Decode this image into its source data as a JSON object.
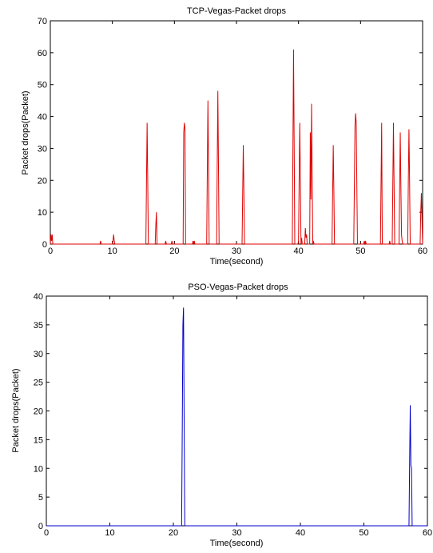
{
  "chart_data": [
    {
      "type": "line",
      "title": "TCP-Vegas-Packet drops",
      "xlabel": "Time(second)",
      "ylabel": "Packet drops(Packet)",
      "xlim": [
        0,
        60
      ],
      "ylim": [
        0,
        70
      ],
      "xticks": [
        0,
        10,
        20,
        30,
        40,
        50,
        60
      ],
      "yticks": [
        0,
        10,
        20,
        30,
        40,
        50,
        60,
        70
      ],
      "grid": false,
      "series": [
        {
          "color": "#e00000",
          "x": [
            0,
            0.1,
            0.2,
            0.3,
            0.4,
            8,
            8.1,
            8.2,
            10,
            10.1,
            10.2,
            10.3,
            10.4,
            15.4,
            15.5,
            15.6,
            15.7,
            15.8,
            16.9,
            17.0,
            17.1,
            17.2,
            18.5,
            18.6,
            18.7,
            19.5,
            19.6,
            19.7,
            21.4,
            21.5,
            21.6,
            21.7,
            21.8,
            22.9,
            23.0,
            23.1,
            23.2,
            23.3,
            25.2,
            25.3,
            25.4,
            25.5,
            25.6,
            26.8,
            26.9,
            27.0,
            27.1,
            27.2,
            30.9,
            31.0,
            31.1,
            31.2,
            31.3,
            39.0,
            39.1,
            39.2,
            39.3,
            39.4,
            39.9,
            40.0,
            40.1,
            40.2,
            40.3,
            40.4,
            40.5,
            40.6,
            41.0,
            41.1,
            41.2,
            41.3,
            41.4,
            41.8,
            41.9,
            42.0,
            42.1,
            42.2,
            42.3,
            42.4,
            42.5,
            42.6,
            45.4,
            45.5,
            45.6,
            45.7,
            45.8,
            48.9,
            49.0,
            49.1,
            49.2,
            49.3,
            49.4,
            49.5,
            50.5,
            50.6,
            50.7,
            50.8,
            50.9,
            53.2,
            53.3,
            53.4,
            53.5,
            54.6,
            54.7,
            54.8,
            55.1,
            55.2,
            55.3,
            55.4,
            55.5,
            56.2,
            56.3,
            56.4,
            56.5,
            56.6,
            56.7,
            56.8,
            57.6,
            57.7,
            57.8,
            57.9,
            58.0,
            58.1,
            59.6,
            59.7,
            59.8,
            59.9,
            60
          ],
          "y": [
            0,
            3,
            1,
            3,
            0,
            0,
            1,
            0,
            0,
            1,
            3,
            1,
            0,
            0,
            20,
            38,
            19,
            0,
            0,
            6,
            10,
            0,
            0,
            1,
            0,
            0,
            1,
            0,
            0,
            35,
            38,
            36,
            0,
            0,
            1,
            0,
            1,
            0,
            0,
            23,
            45,
            23,
            0,
            0,
            25,
            48,
            25,
            0,
            0,
            16,
            31,
            16,
            0,
            0,
            31,
            61,
            31,
            0,
            0,
            1,
            20,
            38,
            20,
            0,
            2,
            0,
            0,
            5,
            2,
            3,
            0,
            0,
            35,
            14,
            44,
            22,
            0,
            1,
            0,
            0,
            0,
            16,
            31,
            16,
            0,
            0,
            18,
            37,
            41,
            38,
            19,
            0,
            0,
            1,
            0,
            1,
            0,
            0,
            19,
            38,
            0,
            0,
            1,
            0,
            0,
            19,
            38,
            19,
            0,
            0,
            18,
            35,
            18,
            3,
            1,
            0,
            0,
            20,
            36,
            20,
            0,
            0,
            0,
            10,
            16,
            8,
            0
          ]
        }
      ]
    },
    {
      "type": "line",
      "title": "PSO-Vegas-Packet drops",
      "xlabel": "Time(second)",
      "ylabel": "Packet drops(Packet)",
      "xlim": [
        0,
        60
      ],
      "ylim": [
        0,
        40
      ],
      "xticks": [
        0,
        10,
        20,
        30,
        40,
        50,
        60
      ],
      "yticks": [
        0,
        5,
        10,
        15,
        20,
        25,
        30,
        35,
        40
      ],
      "grid": false,
      "series": [
        {
          "color": "#0000cc",
          "x": [
            0,
            21.3,
            21.4,
            21.5,
            21.6,
            21.7,
            21.8,
            57.1,
            57.2,
            57.3,
            57.4,
            57.5,
            57.6,
            60
          ],
          "y": [
            0,
            0,
            16.5,
            35,
            38,
            18,
            0,
            0,
            11,
            21,
            10.5,
            10,
            0,
            0
          ]
        }
      ]
    }
  ]
}
